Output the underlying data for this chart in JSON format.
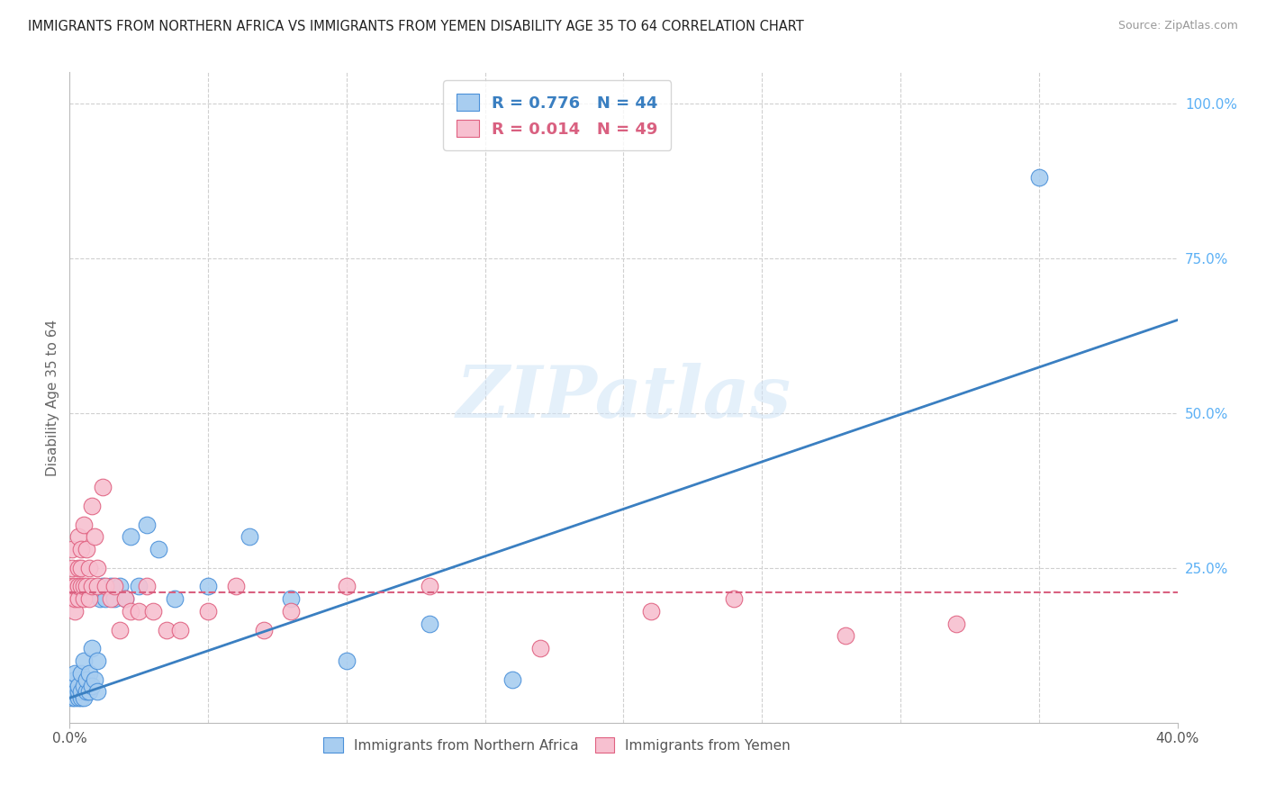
{
  "title": "IMMIGRANTS FROM NORTHERN AFRICA VS IMMIGRANTS FROM YEMEN DISABILITY AGE 35 TO 64 CORRELATION CHART",
  "source": "Source: ZipAtlas.com",
  "ylabel": "Disability Age 35 to 64",
  "ylabel_right_ticks": [
    "100.0%",
    "75.0%",
    "50.0%",
    "25.0%"
  ],
  "ylabel_right_values": [
    1.0,
    0.75,
    0.5,
    0.25
  ],
  "xlim": [
    0.0,
    0.4
  ],
  "ylim": [
    0.0,
    1.05
  ],
  "watermark_text": "ZIPatlas",
  "legend_blue_R": "R = 0.776",
  "legend_blue_N": "N = 44",
  "legend_pink_R": "R = 0.014",
  "legend_pink_N": "N = 49",
  "blue_label": "Immigrants from Northern Africa",
  "pink_label": "Immigrants from Yemen",
  "blue_fill_color": "#a8cdf0",
  "pink_fill_color": "#f7c0d0",
  "blue_edge_color": "#4a90d9",
  "pink_edge_color": "#e06080",
  "blue_line_color": "#3a7fc1",
  "pink_line_color": "#d96080",
  "background_color": "#ffffff",
  "grid_color": "#d0d0d0",
  "right_tick_color": "#5bb0f5",
  "title_fontsize": 10.5,
  "source_fontsize": 9,
  "blue_scatter_x": [
    0.001,
    0.001,
    0.001,
    0.002,
    0.002,
    0.002,
    0.002,
    0.003,
    0.003,
    0.003,
    0.004,
    0.004,
    0.004,
    0.005,
    0.005,
    0.005,
    0.006,
    0.006,
    0.007,
    0.007,
    0.008,
    0.008,
    0.009,
    0.01,
    0.01,
    0.011,
    0.012,
    0.013,
    0.015,
    0.016,
    0.018,
    0.02,
    0.022,
    0.025,
    0.028,
    0.032,
    0.038,
    0.05,
    0.065,
    0.08,
    0.1,
    0.13,
    0.16,
    0.35
  ],
  "blue_scatter_y": [
    0.04,
    0.05,
    0.06,
    0.04,
    0.05,
    0.07,
    0.08,
    0.04,
    0.05,
    0.06,
    0.04,
    0.05,
    0.08,
    0.04,
    0.06,
    0.1,
    0.05,
    0.07,
    0.05,
    0.08,
    0.06,
    0.12,
    0.07,
    0.05,
    0.1,
    0.2,
    0.22,
    0.2,
    0.22,
    0.2,
    0.22,
    0.2,
    0.3,
    0.22,
    0.32,
    0.28,
    0.2,
    0.22,
    0.3,
    0.2,
    0.1,
    0.16,
    0.07,
    0.88
  ],
  "pink_scatter_x": [
    0.001,
    0.001,
    0.001,
    0.001,
    0.002,
    0.002,
    0.002,
    0.003,
    0.003,
    0.003,
    0.003,
    0.004,
    0.004,
    0.004,
    0.005,
    0.005,
    0.005,
    0.006,
    0.006,
    0.007,
    0.007,
    0.008,
    0.008,
    0.009,
    0.01,
    0.01,
    0.012,
    0.013,
    0.015,
    0.016,
    0.018,
    0.02,
    0.022,
    0.025,
    0.028,
    0.03,
    0.035,
    0.04,
    0.05,
    0.06,
    0.07,
    0.08,
    0.1,
    0.13,
    0.17,
    0.21,
    0.24,
    0.28,
    0.32
  ],
  "pink_scatter_y": [
    0.2,
    0.22,
    0.25,
    0.28,
    0.18,
    0.2,
    0.22,
    0.2,
    0.22,
    0.25,
    0.3,
    0.22,
    0.25,
    0.28,
    0.2,
    0.22,
    0.32,
    0.22,
    0.28,
    0.2,
    0.25,
    0.22,
    0.35,
    0.3,
    0.22,
    0.25,
    0.38,
    0.22,
    0.2,
    0.22,
    0.15,
    0.2,
    0.18,
    0.18,
    0.22,
    0.18,
    0.15,
    0.15,
    0.18,
    0.22,
    0.15,
    0.18,
    0.22,
    0.22,
    0.12,
    0.18,
    0.2,
    0.14,
    0.16
  ],
  "blue_line_x": [
    0.0,
    0.4
  ],
  "blue_line_y": [
    0.04,
    0.65
  ],
  "pink_line_x": [
    0.0,
    0.4
  ],
  "pink_line_y": [
    0.21,
    0.21
  ],
  "grid_hlines": [
    0.25,
    0.5,
    0.75,
    1.0
  ],
  "grid_vlines": [
    0.05,
    0.1,
    0.15,
    0.2,
    0.25,
    0.3,
    0.35
  ]
}
